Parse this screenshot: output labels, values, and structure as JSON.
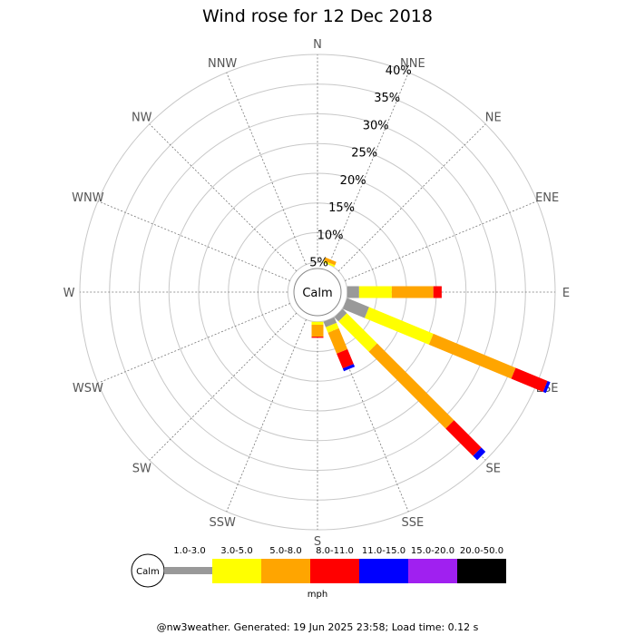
{
  "title": "Wind rose for 12 Dec 2018",
  "calm_label": "Calm",
  "unit_label": "mph",
  "footer": "@nw3weather. Generated: 19 Jun 2025 23:58; Load time: 0.12 s",
  "chart_data": {
    "type": "polar-bar",
    "directions": [
      "N",
      "NNE",
      "NE",
      "ENE",
      "E",
      "ESE",
      "SE",
      "SSE",
      "S",
      "SSW",
      "SW",
      "WSW",
      "W",
      "WNW",
      "NW",
      "NNW"
    ],
    "radial_ticks": [
      "5%",
      "10%",
      "15%",
      "20%",
      "25%",
      "30%",
      "35%",
      "40%"
    ],
    "radial_max": 40,
    "calm_radius": 5,
    "speed_bins": [
      {
        "label": "1.0-3.0",
        "color": "#999999"
      },
      {
        "label": "3.0-5.0",
        "color": "#ffff00"
      },
      {
        "label": "5.0-8.0",
        "color": "#ffa500"
      },
      {
        "label": "8.0-11.0",
        "color": "#ff0000"
      },
      {
        "label": "11.0-15.0",
        "color": "#0000ff"
      },
      {
        "label": "15.0-20.0",
        "color": "#a020f0"
      },
      {
        "label": "20.0-50.0",
        "color": "#000000"
      }
    ],
    "series": [
      {
        "direction": "NNE",
        "cumulative": [
          5.0,
          5.3,
          5.9
        ]
      },
      {
        "direction": "E",
        "cumulative": [
          7.0,
          12.5,
          19.5,
          20.9
        ]
      },
      {
        "direction": "ESE",
        "cumulative": [
          9.0,
          20.7,
          35.7,
          41.5,
          42.0
        ]
      },
      {
        "direction": "SE",
        "cumulative": [
          6.0,
          13.2,
          31.5,
          38.0,
          39.0
        ]
      },
      {
        "direction": "SSE",
        "cumulative": [
          6.0,
          7.0,
          10.8,
          13.5,
          14.0
        ]
      },
      {
        "direction": "S",
        "cumulative": [
          5.0,
          5.5,
          7.5,
          7.7
        ]
      }
    ]
  }
}
